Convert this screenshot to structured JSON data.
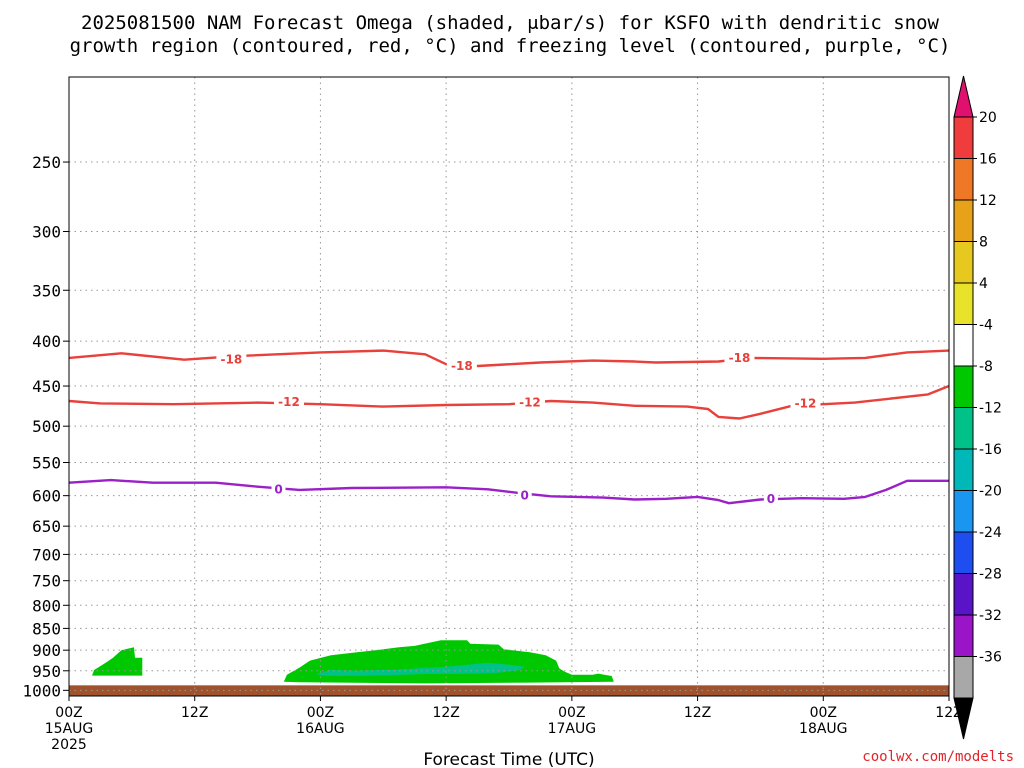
{
  "title_line1": "2025081500 NAM Forecast Omega (shaded, μbar/s) for KSFO with dendritic snow",
  "title_line2": "growth region (contoured, red, °C) and freezing level (contoured, purple, °C)",
  "credit": "coolwx.com/modelts",
  "chart_data": {
    "type": "time-height",
    "xlabel": "Forecast Time (UTC)",
    "x_ticks": [
      {
        "hour": 0,
        "line1": "00Z",
        "line2": "15AUG",
        "line3": "2025"
      },
      {
        "hour": 12,
        "line1": "12Z",
        "line2": "",
        "line3": ""
      },
      {
        "hour": 24,
        "line1": "00Z",
        "line2": "16AUG",
        "line3": ""
      },
      {
        "hour": 36,
        "line1": "12Z",
        "line2": "",
        "line3": ""
      },
      {
        "hour": 48,
        "line1": "00Z",
        "line2": "17AUG",
        "line3": ""
      },
      {
        "hour": 60,
        "line1": "12Z",
        "line2": "",
        "line3": ""
      },
      {
        "hour": 72,
        "line1": "00Z",
        "line2": "18AUG",
        "line3": ""
      },
      {
        "hour": 84,
        "line1": "12Z",
        "line2": "",
        "line3": ""
      }
    ],
    "xlim": [
      0,
      84
    ],
    "y_levels_mb": [
      250,
      300,
      350,
      400,
      450,
      500,
      550,
      600,
      650,
      700,
      750,
      800,
      850,
      900,
      950,
      1000
    ],
    "ylim_mb": [
      1015,
      200
    ],
    "y_scale": "log-pressure",
    "grid": true,
    "contours": [
      {
        "label": "-18",
        "color": "#e8403a",
        "points": [
          [
            0,
            418
          ],
          [
            5,
            413
          ],
          [
            11,
            420
          ],
          [
            16,
            416
          ],
          [
            24,
            412
          ],
          [
            30,
            410
          ],
          [
            34,
            414
          ],
          [
            36,
            425
          ],
          [
            39,
            427
          ],
          [
            45,
            423
          ],
          [
            50,
            421
          ],
          [
            54,
            422
          ],
          [
            56,
            423
          ],
          [
            62,
            422
          ],
          [
            65,
            418
          ],
          [
            72,
            419
          ],
          [
            76,
            418
          ],
          [
            80,
            412
          ],
          [
            84,
            410
          ]
        ],
        "labels": [
          [
            15.5,
            420
          ],
          [
            37.5,
            427
          ],
          [
            64,
            418
          ]
        ]
      },
      {
        "label": "-12",
        "color": "#e8403a",
        "points": [
          [
            0,
            468
          ],
          [
            3,
            471
          ],
          [
            10,
            472
          ],
          [
            18,
            470
          ],
          [
            24,
            472
          ],
          [
            30,
            475
          ],
          [
            36,
            473
          ],
          [
            42,
            472
          ],
          [
            46,
            468
          ],
          [
            50,
            470
          ],
          [
            54,
            474
          ],
          [
            59,
            475
          ],
          [
            61,
            478
          ],
          [
            62,
            488
          ],
          [
            64,
            490
          ],
          [
            66,
            484
          ],
          [
            69,
            474
          ],
          [
            75,
            470
          ],
          [
            82,
            460
          ],
          [
            84,
            450
          ]
        ],
        "labels": [
          [
            21,
            469
          ],
          [
            44,
            470
          ],
          [
            70.3,
            471
          ]
        ]
      },
      {
        "label": "0",
        "color": "#9a20c8",
        "points": [
          [
            0,
            580
          ],
          [
            4,
            576
          ],
          [
            8,
            580
          ],
          [
            14,
            580
          ],
          [
            18,
            586
          ],
          [
            22,
            591
          ],
          [
            27,
            588
          ],
          [
            36,
            587
          ],
          [
            40,
            590
          ],
          [
            43,
            596
          ],
          [
            46,
            601
          ],
          [
            51,
            603
          ],
          [
            54,
            606
          ],
          [
            57,
            605
          ],
          [
            60,
            602
          ],
          [
            62,
            607
          ],
          [
            63,
            612
          ],
          [
            66,
            606
          ],
          [
            70,
            604
          ],
          [
            74,
            605
          ],
          [
            76,
            602
          ],
          [
            78,
            591
          ],
          [
            80,
            577
          ],
          [
            84,
            577
          ]
        ],
        "labels": [
          [
            20,
            590
          ],
          [
            43.5,
            600
          ],
          [
            67,
            605
          ]
        ]
      }
    ],
    "shaded": [
      {
        "value_range": [
          -8,
          -4
        ],
        "color": "#00c800",
        "polygons": [
          [
            [
              2.2,
              962
            ],
            [
              2.4,
              948
            ],
            [
              3.5,
              930
            ],
            [
              4.2,
              918
            ],
            [
              5.0,
              900
            ],
            [
              6.2,
              893
            ],
            [
              6.3,
              918
            ],
            [
              7.0,
              918
            ],
            [
              7.0,
              962
            ]
          ],
          [
            [
              20.5,
              978
            ],
            [
              20.8,
              960
            ],
            [
              22,
              942
            ],
            [
              23,
              925
            ],
            [
              25,
              912
            ],
            [
              27.5,
              905
            ],
            [
              30,
              898
            ],
            [
              31.5,
              893
            ],
            [
              33,
              890
            ],
            [
              35.5,
              877
            ],
            [
              38,
              877
            ],
            [
              38.3,
              885
            ],
            [
              41,
              887
            ],
            [
              41.5,
              898
            ],
            [
              44,
              905
            ],
            [
              45.5,
              912
            ],
            [
              46.5,
              925
            ],
            [
              46.8,
              944
            ],
            [
              47.3,
              952
            ],
            [
              48,
              960
            ],
            [
              50,
              960
            ],
            [
              50.5,
              957
            ],
            [
              51.8,
              963
            ],
            [
              52,
              978
            ],
            [
              44,
              980
            ],
            [
              34,
              982
            ],
            [
              22,
              979
            ]
          ]
        ]
      },
      {
        "value_range": [
          -12,
          -8
        ],
        "color": "#00c288",
        "polygons": [
          [
            [
              23.6,
              958
            ],
            [
              25,
              948
            ],
            [
              27.5,
              950
            ],
            [
              31,
              947
            ],
            [
              34,
              943
            ],
            [
              36,
              940
            ],
            [
              38,
              935
            ],
            [
              40,
              930
            ],
            [
              42,
              935
            ],
            [
              43.5,
              940
            ],
            [
              43,
              948
            ],
            [
              41,
              955
            ],
            [
              38,
              957
            ],
            [
              36.5,
              958
            ],
            [
              34,
              958
            ],
            [
              30,
              961
            ],
            [
              26,
              963
            ],
            [
              24,
              961
            ]
          ]
        ]
      }
    ],
    "ground": {
      "color": "#a0522d",
      "mb_top": 987
    },
    "colorbar": {
      "labels": [
        "20",
        "16",
        "12",
        "8",
        "4",
        "-4",
        "-8",
        "-12",
        "-16",
        "-20",
        "-24",
        "-28",
        "-32",
        "-36"
      ],
      "colors": [
        "#e0116e",
        "#f03c3c",
        "#ee7826",
        "#e8a21a",
        "#e6c81e",
        "#e8e22a",
        "#ffffff",
        "#00c800",
        "#00c288",
        "#00b8b8",
        "#1a96f0",
        "#1e4ef0",
        "#5a14c8",
        "#9a14c8",
        "#a8a8a8",
        "#000000"
      ]
    }
  }
}
